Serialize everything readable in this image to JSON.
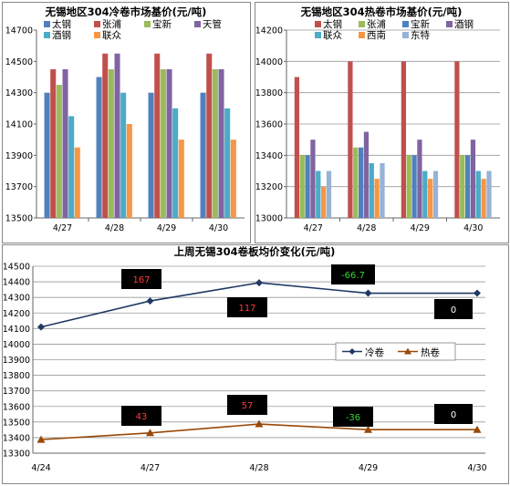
{
  "chart_data": [
    {
      "type": "bar",
      "title": "无锡地区304冷卷市场基价(元/吨)",
      "categories": [
        "4/27",
        "4/28",
        "4/29",
        "4/30"
      ],
      "ylim": [
        13500,
        14700
      ],
      "yticks": [
        13500,
        13700,
        13900,
        14100,
        14300,
        14500,
        14700
      ],
      "grid": false,
      "legend_position": "top",
      "series": [
        {
          "name": "太钢",
          "color": "#4f81bd",
          "values": [
            14300,
            14400,
            14300,
            14300
          ]
        },
        {
          "name": "张浦",
          "color": "#c0504d",
          "values": [
            14450,
            14550,
            14550,
            14550
          ]
        },
        {
          "name": "宝新",
          "color": "#9bbb59",
          "values": [
            14350,
            14450,
            14450,
            14450
          ]
        },
        {
          "name": "天管",
          "color": "#8064a2",
          "values": [
            14450,
            14550,
            14450,
            14450
          ]
        },
        {
          "name": "酒钢",
          "color": "#4bacc6",
          "values": [
            14150,
            14300,
            14200,
            14200
          ]
        },
        {
          "name": "联众",
          "color": "#f79646",
          "values": [
            13950,
            14100,
            14000,
            14000
          ]
        }
      ]
    },
    {
      "type": "bar",
      "title": "无锡地区304热卷市场基价(元/吨)",
      "categories": [
        "4/27",
        "4/28",
        "4/29",
        "4/30"
      ],
      "ylim": [
        13000,
        14200
      ],
      "yticks": [
        13000,
        13200,
        13400,
        13600,
        13800,
        14000,
        14200
      ],
      "grid": true,
      "legend_position": "top",
      "series": [
        {
          "name": "太钢",
          "color": "#c0504d",
          "values": [
            13900,
            14000,
            14000,
            14000
          ]
        },
        {
          "name": "张浦",
          "color": "#9bbb59",
          "values": [
            13400,
            13450,
            13400,
            13400
          ]
        },
        {
          "name": "宝新",
          "color": "#4f81bd",
          "values": [
            13400,
            13450,
            13400,
            13400
          ]
        },
        {
          "name": "酒钢",
          "color": "#8064a2",
          "values": [
            13500,
            13550,
            13500,
            13500
          ]
        },
        {
          "name": "联众",
          "color": "#4bacc6",
          "values": [
            13300,
            13350,
            13300,
            13300
          ]
        },
        {
          "name": "西南",
          "color": "#f79646",
          "values": [
            13200,
            13250,
            13250,
            13250
          ]
        },
        {
          "name": "东特",
          "color": "#95b3d7",
          "values": [
            13300,
            13350,
            13300,
            13300
          ]
        }
      ]
    },
    {
      "type": "line",
      "title": "上周无锡304卷板均价变化(元/吨)",
      "x": [
        "4/24",
        "4/27",
        "4/28",
        "4/29",
        "4/30"
      ],
      "ylim": [
        13300,
        14500
      ],
      "yticks": [
        13300,
        13400,
        13500,
        13600,
        13700,
        13800,
        13900,
        14000,
        14100,
        14200,
        14300,
        14400,
        14500
      ],
      "grid": true,
      "legend_position": "right",
      "series": [
        {
          "name": "冷卷",
          "color": "#1f3864",
          "marker": "diamond",
          "values": [
            14110,
            14277,
            14394,
            14327,
            14327
          ]
        },
        {
          "name": "热卷",
          "color": "#984807",
          "marker": "triangle",
          "values": [
            13387,
            13430,
            13487,
            13451,
            13451
          ]
        }
      ],
      "annotations": [
        {
          "series": "冷卷",
          "at": "4/27",
          "text": "167",
          "color": "#ff3b3b"
        },
        {
          "series": "冷卷",
          "at": "4/28",
          "text": "117",
          "color": "#ff3b3b"
        },
        {
          "series": "冷卷",
          "at": "4/29",
          "text": "-66.7",
          "color": "#36d936"
        },
        {
          "series": "冷卷",
          "at": "4/30",
          "text": "0",
          "color": "#ffffff"
        },
        {
          "series": "热卷",
          "at": "4/27",
          "text": "43",
          "color": "#ff3b3b"
        },
        {
          "series": "热卷",
          "at": "4/28",
          "text": "57",
          "color": "#ff3b3b"
        },
        {
          "series": "热卷",
          "at": "4/29",
          "text": "-36",
          "color": "#36d936"
        },
        {
          "series": "热卷",
          "at": "4/30",
          "text": "0",
          "color": "#ffffff"
        }
      ]
    }
  ]
}
